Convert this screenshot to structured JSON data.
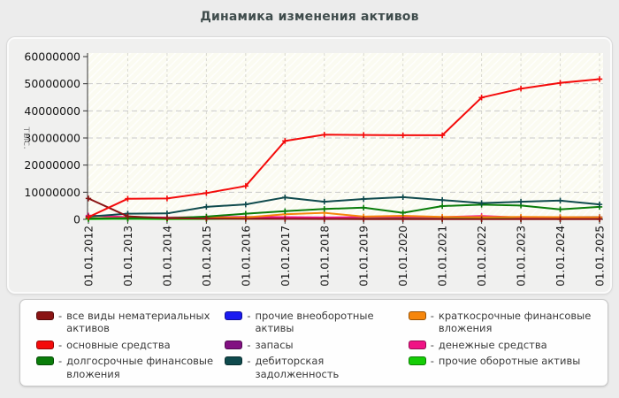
{
  "chart_data": {
    "type": "line",
    "title": "Динамика изменения активов",
    "xlabel": "",
    "ylabel": "тыс.",
    "ylim": [
      0,
      60000000
    ],
    "y_ticks": [
      0,
      10000000,
      20000000,
      30000000,
      40000000,
      50000000,
      60000000
    ],
    "grid": true,
    "plot_background": "hatched-cream",
    "legend_position": "bottom",
    "marker": "plus",
    "categories": [
      "01.01.2012",
      "01.01.2013",
      "01.01.2014",
      "01.01.2015",
      "01.01.2016",
      "01.01.2017",
      "01.01.2018",
      "01.01.2019",
      "01.01.2020",
      "01.01.2021",
      "01.01.2022",
      "01.01.2023",
      "01.01.2024",
      "01.01.2025"
    ],
    "series": [
      {
        "name": "все виды нематериальных активов",
        "color": "#8a1414",
        "values": [
          7700000,
          1100000,
          400000,
          250000,
          200000,
          150000,
          120000,
          100000,
          100000,
          100000,
          80000,
          80000,
          60000,
          60000
        ]
      },
      {
        "name": "основные средства",
        "color": "#f40b0b",
        "values": [
          800000,
          7600000,
          7700000,
          9700000,
          12300000,
          28900000,
          31200000,
          31100000,
          31000000,
          31000000,
          44900000,
          48200000,
          50300000,
          51700000
        ]
      },
      {
        "name": "долгосрочные финансовые вложения",
        "color": "#0a7d0a",
        "values": [
          300000,
          400000,
          400000,
          1000000,
          2100000,
          3000000,
          3800000,
          4300000,
          2400000,
          4900000,
          5400000,
          5100000,
          3700000,
          4600000
        ]
      },
      {
        "name": "прочие внеоборотные активы",
        "color": "#1a1af0",
        "values": [
          200000,
          250000,
          300000,
          300000,
          300000,
          350000,
          400000,
          400000,
          400000,
          450000,
          450000,
          500000,
          800000,
          850000
        ]
      },
      {
        "name": "запасы",
        "color": "#821082",
        "values": [
          300000,
          300000,
          300000,
          350000,
          350000,
          400000,
          400000,
          400000,
          450000,
          450000,
          500000,
          500000,
          450000,
          450000
        ]
      },
      {
        "name": "дебиторская задолженность",
        "color": "#0f4a4d",
        "values": [
          1000000,
          2100000,
          2200000,
          4600000,
          5500000,
          8100000,
          6500000,
          7500000,
          8200000,
          7100000,
          6000000,
          6500000,
          6900000,
          5500000
        ]
      },
      {
        "name": "краткосрочные финансовые вложения",
        "color": "#f6860b",
        "values": [
          400000,
          500000,
          500000,
          600000,
          700000,
          1900000,
          2400000,
          1000000,
          1300000,
          900000,
          800000,
          900000,
          800000,
          800000
        ]
      },
      {
        "name": "денежные средства",
        "color": "#f01285",
        "values": [
          1400000,
          800000,
          700000,
          800000,
          900000,
          800000,
          700000,
          800000,
          900000,
          800000,
          1200000,
          700000,
          700000,
          700000
        ]
      },
      {
        "name": "прочие оборотные активы",
        "color": "#15cd06",
        "values": [
          100000,
          200000,
          100000,
          120000,
          150000,
          150000,
          150000,
          150000,
          200000,
          150000,
          200000,
          200000,
          150000,
          150000
        ]
      }
    ],
    "z_order": [
      3,
      4,
      8,
      7,
      6,
      2,
      5,
      0,
      1
    ]
  },
  "legend": {
    "separator": "-",
    "columns": [
      [
        0,
        1,
        2
      ],
      [
        3,
        4,
        5
      ],
      [
        6,
        7,
        8
      ]
    ]
  }
}
